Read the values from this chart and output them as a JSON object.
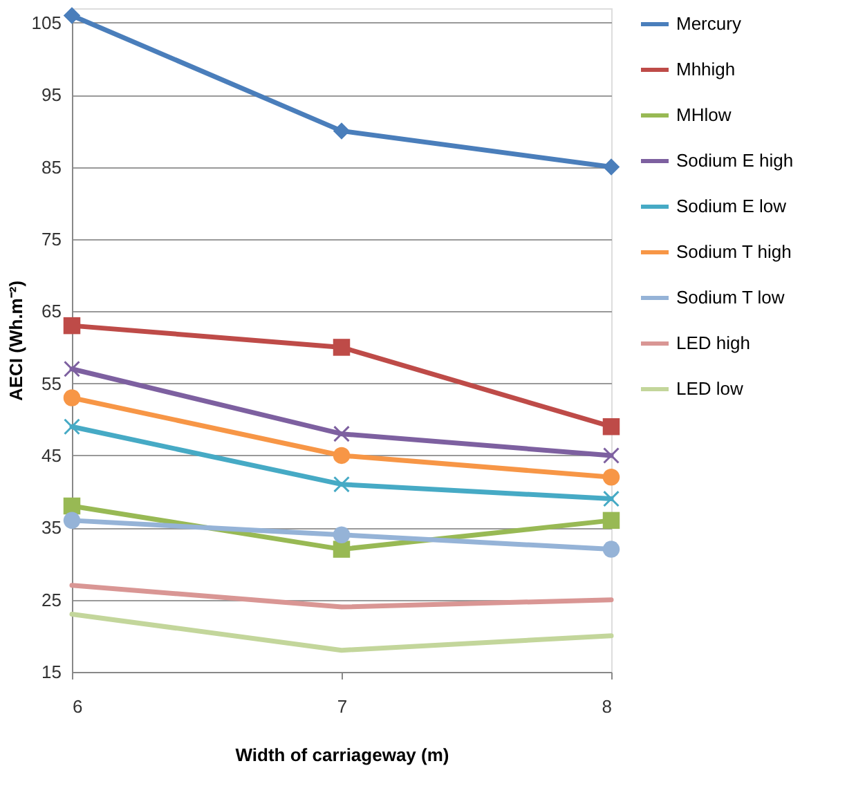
{
  "chart_data": {
    "type": "line",
    "xlabel": "Width of carriageway  (m)",
    "ylabel": "AECI (Wh.m⁻²)",
    "x": [
      6,
      7,
      8
    ],
    "xlim": [
      6,
      8
    ],
    "xticks": [
      {
        "value": 6,
        "label": "6"
      },
      {
        "value": 7,
        "label": "7"
      },
      {
        "value": 8,
        "label": "8"
      }
    ],
    "ylim": [
      15,
      107
    ],
    "yticks": [
      15,
      25,
      35,
      45,
      55,
      65,
      75,
      85,
      95,
      105
    ],
    "grid": "y",
    "legend": "right",
    "series": [
      {
        "name": "Mercury",
        "color": "#4a7ebb",
        "marker": "diamond",
        "values": [
          106,
          90,
          85
        ]
      },
      {
        "name": "Mhhigh",
        "color": "#be4b48",
        "marker": "square",
        "values": [
          63,
          60,
          49
        ]
      },
      {
        "name": "MHlow",
        "color": "#98b954",
        "marker": "square",
        "values": [
          38,
          32,
          36
        ]
      },
      {
        "name": "Sodium E high",
        "color": "#7d60a0",
        "marker": "cross",
        "values": [
          57,
          48,
          45
        ]
      },
      {
        "name": "Sodium E low",
        "color": "#46aac5",
        "marker": "cross",
        "values": [
          49,
          41,
          39
        ]
      },
      {
        "name": "Sodium T high",
        "color": "#f79646",
        "marker": "circle",
        "values": [
          53,
          45,
          42
        ]
      },
      {
        "name": "Sodium T low",
        "color": "#95b3d7",
        "marker": "circle",
        "values": [
          36,
          34,
          32
        ]
      },
      {
        "name": "LED high",
        "color": "#d99694",
        "marker": "none",
        "values": [
          27,
          24,
          25
        ]
      },
      {
        "name": "LED low",
        "color": "#c3d69b",
        "marker": "none",
        "values": [
          23,
          18,
          20
        ]
      }
    ]
  }
}
